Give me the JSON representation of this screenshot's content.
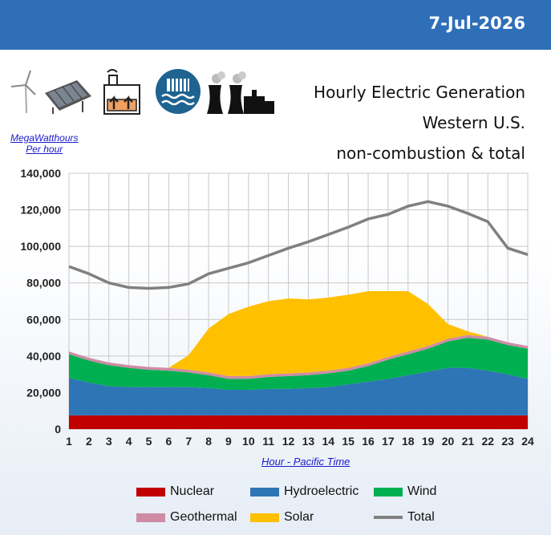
{
  "header": {
    "date": "7-Jul-2026"
  },
  "title_lines": [
    "Hourly Electric Generation",
    "Western U.S.",
    "non-combustion & total"
  ],
  "unit_label_lines": [
    "MegaWatthours",
    "Per hour"
  ],
  "icons": [
    "wind-turbine-icon",
    "solar-panel-icon",
    "geothermal-plant-icon",
    "hydro-dam-icon",
    "nuclear-plant-icon"
  ],
  "colors": {
    "banner": "#2e6fb8",
    "nuclear": "#c00000",
    "hydro": "#2e75b6",
    "wind": "#00b050",
    "geothermal": "#cf8ba4",
    "solar": "#ffc000",
    "total": "#808080"
  },
  "chart_data": {
    "type": "area",
    "stacked": true,
    "xlabel": "Hour - Pacific Time",
    "ylabel": "",
    "ylim": [
      0,
      140000
    ],
    "yticks": [
      0,
      20000,
      40000,
      60000,
      80000,
      100000,
      120000,
      140000
    ],
    "ytick_labels": [
      "0",
      "20,000",
      "40,000",
      "60,000",
      "80,000",
      "100,000",
      "120,000",
      "140,000"
    ],
    "grid": true,
    "x": [
      1,
      2,
      3,
      4,
      5,
      6,
      7,
      8,
      9,
      10,
      11,
      12,
      13,
      14,
      15,
      16,
      17,
      18,
      19,
      20,
      21,
      22,
      23,
      24
    ],
    "series": [
      {
        "name": "Nuclear",
        "key": "nuclear",
        "kind": "area",
        "values": [
          7500,
          7500,
          7500,
          7500,
          7500,
          7500,
          7500,
          7500,
          7500,
          7500,
          7500,
          7500,
          7500,
          7500,
          7500,
          7500,
          7500,
          7500,
          7500,
          7500,
          7500,
          7500,
          7500,
          7500
        ]
      },
      {
        "name": "Hydroelectric",
        "key": "hydro",
        "kind": "area",
        "values": [
          20500,
          18000,
          16000,
          15500,
          15500,
          15500,
          15500,
          15000,
          14000,
          14000,
          14500,
          14500,
          15000,
          15500,
          17000,
          18500,
          20000,
          22000,
          24000,
          26000,
          26000,
          24500,
          22500,
          20000
        ]
      },
      {
        "name": "Wind",
        "key": "wind",
        "kind": "area",
        "values": [
          13000,
          12000,
          11500,
          10500,
          9500,
          9000,
          8000,
          7000,
          6000,
          6000,
          6500,
          7000,
          7000,
          7500,
          7500,
          8500,
          10500,
          11500,
          12500,
          14500,
          16500,
          17000,
          16000,
          16500
        ]
      },
      {
        "name": "Geothermal",
        "key": "geothermal",
        "kind": "area",
        "values": [
          1500,
          1500,
          1500,
          1500,
          1500,
          1500,
          1500,
          1500,
          1500,
          1500,
          1500,
          1500,
          1500,
          1500,
          1500,
          1500,
          1500,
          1500,
          1500,
          1500,
          1500,
          1500,
          1500,
          1500
        ]
      },
      {
        "name": "Solar",
        "key": "solar",
        "kind": "area",
        "values": [
          0,
          0,
          0,
          0,
          0,
          0,
          8000,
          24000,
          34000,
          38000,
          40000,
          41000,
          40000,
          40000,
          40000,
          39500,
          36000,
          33000,
          23000,
          8000,
          2000,
          0,
          0,
          0
        ]
      },
      {
        "name": "Total",
        "key": "total",
        "kind": "line",
        "values": [
          89000,
          85000,
          80000,
          77500,
          77000,
          77500,
          79500,
          85000,
          88000,
          91000,
          95000,
          99000,
          102500,
          106500,
          110500,
          115000,
          117500,
          122000,
          124500,
          122000,
          118000,
          113500,
          99000,
          95500
        ]
      }
    ]
  }
}
